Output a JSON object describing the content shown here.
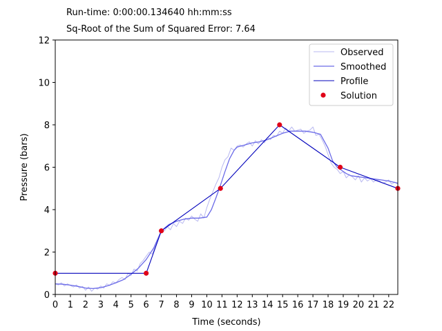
{
  "header": {
    "runtime": "Run-time: 0:00:00.134640 hh:mm:ss",
    "error": "Sq-Root of the Sum of Squared Error: 7.64"
  },
  "chart_data": {
    "type": "line",
    "title": "",
    "xlabel": "Time (seconds)",
    "ylabel": "Pressure (bars)",
    "xlim": [
      0,
      22.6
    ],
    "ylim": [
      0,
      12
    ],
    "xticks": [
      0,
      1,
      2,
      3,
      4,
      5,
      6,
      7,
      8,
      9,
      10,
      11,
      12,
      13,
      14,
      15,
      16,
      17,
      18,
      19,
      20,
      21,
      22
    ],
    "yticks": [
      0,
      2,
      4,
      6,
      8,
      10,
      12
    ],
    "legend_position": "top-right",
    "grid": false,
    "colors": {
      "observed": "#b8b8f0",
      "smoothed": "#6a6ae8",
      "profile": "#0000bb",
      "solution": "#e00018"
    },
    "series": [
      {
        "name": "Observed",
        "style": "line",
        "x": [
          0,
          0.2,
          0.4,
          0.6,
          0.8,
          1.0,
          1.2,
          1.4,
          1.6,
          1.8,
          2.0,
          2.2,
          2.4,
          2.6,
          2.8,
          3.0,
          3.2,
          3.4,
          3.6,
          3.8,
          4.0,
          4.2,
          4.4,
          4.6,
          4.8,
          5.0,
          5.2,
          5.4,
          5.6,
          5.8,
          6.0,
          6.2,
          6.4,
          6.6,
          6.8,
          7.0,
          7.2,
          7.4,
          7.6,
          7.8,
          8.0,
          8.2,
          8.4,
          8.6,
          8.8,
          9.0,
          9.2,
          9.4,
          9.6,
          9.8,
          10.0,
          10.2,
          10.4,
          10.6,
          10.8,
          11.0,
          11.2,
          11.4,
          11.6,
          11.8,
          12.0,
          12.2,
          12.4,
          12.6,
          12.8,
          13.0,
          13.2,
          13.4,
          13.6,
          13.8,
          14.0,
          14.2,
          14.4,
          14.6,
          14.8,
          15.0,
          15.2,
          15.4,
          15.6,
          15.8,
          16.0,
          16.2,
          16.4,
          16.6,
          16.8,
          17.0,
          17.2,
          17.4,
          17.6,
          17.8,
          18.0,
          18.2,
          18.4,
          18.6,
          18.8,
          19.0,
          19.2,
          19.4,
          19.6,
          19.8,
          20.0,
          20.2,
          20.4,
          20.6,
          20.8,
          21.0,
          21.2,
          21.4,
          21.6,
          21.8,
          22.0,
          22.2,
          22.4,
          22.6
        ],
        "y": [
          0.5,
          0.45,
          0.55,
          0.4,
          0.5,
          0.42,
          0.35,
          0.45,
          0.3,
          0.38,
          0.2,
          0.35,
          0.15,
          0.3,
          0.25,
          0.4,
          0.3,
          0.5,
          0.42,
          0.6,
          0.55,
          0.7,
          0.8,
          0.7,
          1.0,
          0.9,
          1.2,
          1.1,
          1.45,
          1.6,
          1.8,
          2.0,
          1.9,
          2.3,
          2.6,
          3.05,
          3.0,
          3.2,
          3.05,
          3.35,
          3.2,
          3.45,
          3.35,
          3.6,
          3.5,
          3.7,
          3.55,
          3.45,
          3.8,
          3.6,
          4.1,
          4.5,
          4.85,
          5.2,
          5.5,
          6.0,
          6.35,
          6.5,
          6.9,
          6.8,
          7.0,
          7.05,
          6.95,
          7.1,
          7.2,
          7.0,
          7.25,
          7.1,
          7.3,
          7.15,
          7.4,
          7.3,
          7.5,
          7.45,
          7.7,
          7.6,
          7.85,
          7.7,
          7.9,
          7.7,
          7.75,
          7.8,
          7.6,
          7.7,
          7.75,
          7.9,
          7.5,
          7.55,
          7.3,
          7.0,
          6.6,
          6.2,
          6.0,
          5.9,
          5.7,
          5.8,
          5.5,
          5.65,
          5.55,
          5.4,
          5.6,
          5.3,
          5.5,
          5.35,
          5.45,
          5.3,
          5.4,
          5.35,
          5.25,
          5.3,
          5.4,
          5.2,
          5.3,
          5.2
        ]
      },
      {
        "name": "Smoothed",
        "style": "line",
        "x": [
          0,
          0.5,
          1.0,
          1.5,
          2.0,
          2.5,
          3.0,
          3.5,
          4.0,
          4.5,
          5.0,
          5.5,
          6.0,
          6.5,
          7.0,
          7.5,
          8.0,
          8.5,
          9.0,
          9.5,
          10.0,
          10.3,
          10.6,
          10.9,
          11.2,
          11.5,
          11.8,
          12.0,
          12.5,
          13.0,
          13.5,
          14.0,
          14.5,
          15.0,
          15.5,
          16.0,
          16.5,
          17.0,
          17.5,
          18.0,
          18.3,
          18.6,
          18.9,
          19.2,
          19.5,
          20.0,
          20.5,
          21.0,
          21.5,
          22.0,
          22.6
        ],
        "y": [
          0.5,
          0.48,
          0.44,
          0.38,
          0.3,
          0.28,
          0.32,
          0.42,
          0.55,
          0.7,
          0.95,
          1.25,
          1.65,
          2.2,
          3.0,
          3.3,
          3.45,
          3.55,
          3.6,
          3.6,
          3.65,
          4.0,
          4.55,
          5.15,
          5.8,
          6.4,
          6.8,
          6.95,
          7.05,
          7.15,
          7.2,
          7.3,
          7.45,
          7.6,
          7.7,
          7.7,
          7.7,
          7.65,
          7.55,
          6.9,
          6.3,
          6.0,
          5.85,
          5.7,
          5.6,
          5.55,
          5.5,
          5.45,
          5.4,
          5.35,
          5.25
        ]
      },
      {
        "name": "Profile",
        "style": "line",
        "x": [
          0,
          6.0,
          7.0,
          10.9,
          14.8,
          18.8,
          22.6
        ],
        "y": [
          1,
          1,
          3,
          5,
          8,
          6,
          5
        ]
      },
      {
        "name": "Solution",
        "style": "scatter",
        "x": [
          0,
          6.0,
          7.0,
          10.9,
          14.8,
          18.8,
          22.6
        ],
        "y": [
          1,
          1,
          3,
          5,
          8,
          6,
          5
        ]
      }
    ]
  }
}
